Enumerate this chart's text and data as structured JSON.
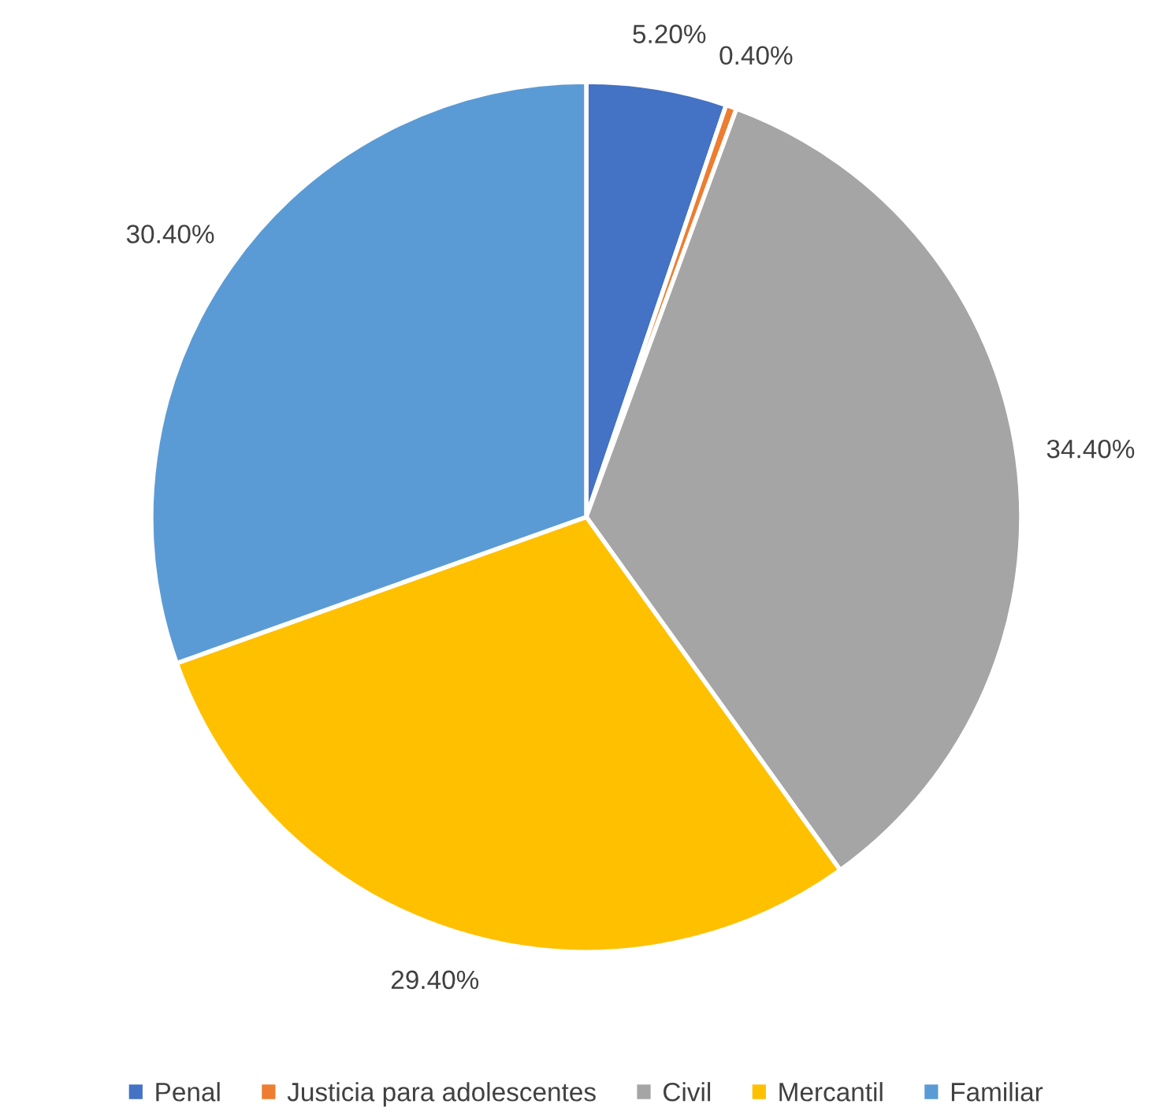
{
  "chart_data": {
    "type": "pie",
    "categories": [
      "Penal",
      "Justicia para adolescentes",
      "Civil",
      "Mercantil",
      "Familiar"
    ],
    "values": [
      5.2,
      0.4,
      34.4,
      29.4,
      30.4
    ],
    "value_labels": [
      "5.20%",
      "0.40%",
      "34.40%",
      "29.40%",
      "30.40%"
    ],
    "colors": [
      "#4472c4",
      "#ed7d31",
      "#a5a5a5",
      "#ffc000",
      "#5b9bd5"
    ],
    "legend": "bottom"
  }
}
